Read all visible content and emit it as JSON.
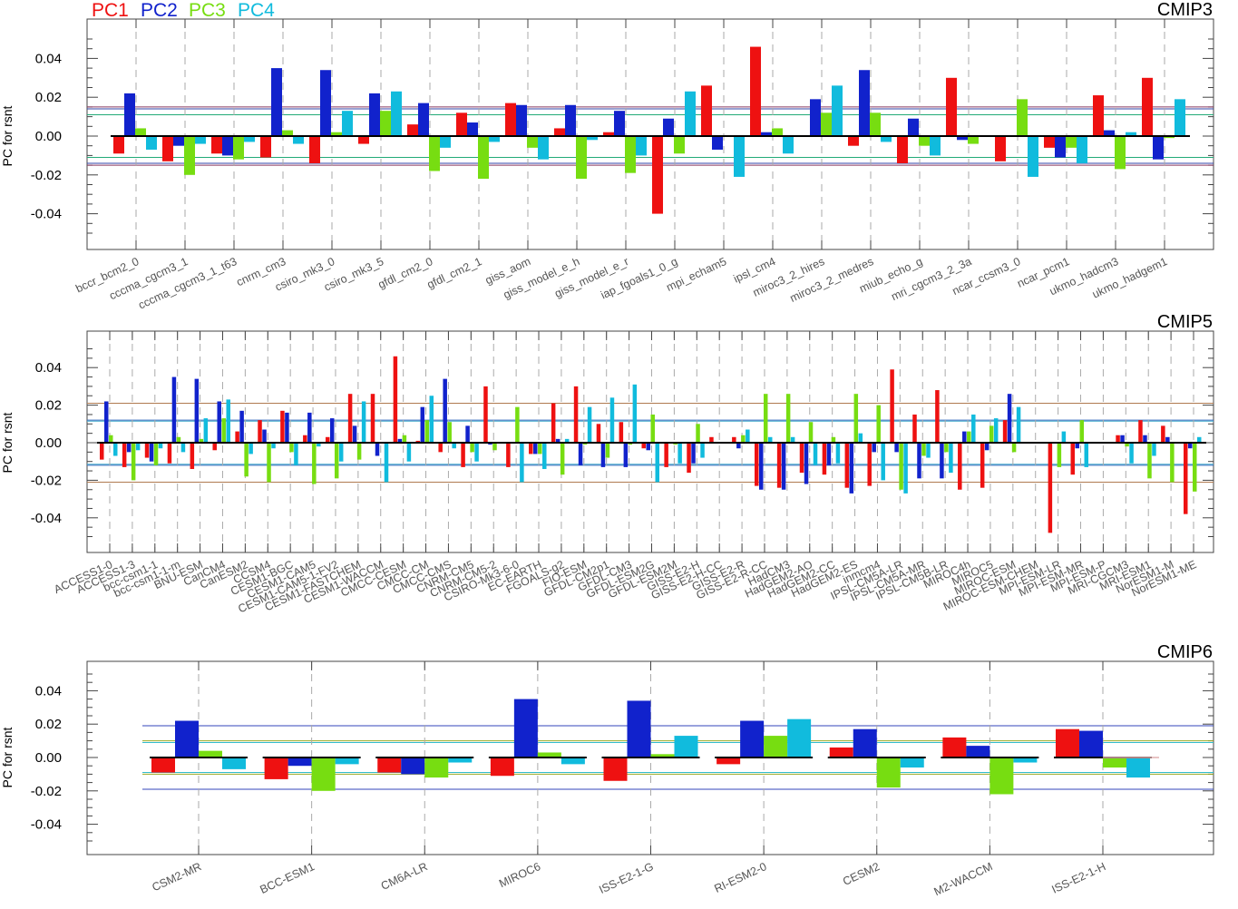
{
  "legend": [
    {
      "label": "PC1",
      "color": "#ee1111"
    },
    {
      "label": "PC2",
      "color": "#1122cc"
    },
    {
      "label": "PC3",
      "color": "#77dd11"
    },
    {
      "label": "PC4",
      "color": "#11bbdd"
    }
  ],
  "chart_data": [
    {
      "type": "bar",
      "title": "CMIP3",
      "ylabel": "PC for rsnt",
      "ylim": [
        -0.057,
        0.06
      ],
      "yticks": [
        "0.04",
        "0.02",
        "0.00",
        "-0.02",
        "-0.04"
      ],
      "categories": [
        "bccr_bcm2_0",
        "cccma_cgcm3_1",
        "cccma_cgcm3_1_t63",
        "cnrm_cm3",
        "csiro_mk3_0",
        "csiro_mk3_5",
        "gfdl_cm2_0",
        "gfdl_cm2_1",
        "giss_aom",
        "giss_model_e_h",
        "giss_model_e_r",
        "iap_fgoals1_0_g",
        "mpi_echam5",
        "ipsl_cm4",
        "miroc3_2_hires",
        "miroc3_2_medres",
        "miub_echo_g",
        "mri_cgcm3_2_3a",
        "ncar_ccsm3_0",
        "ncar_pcm1",
        "ukmo_hadcm3",
        "ukmo_hadgem1"
      ],
      "series": [
        {
          "name": "PC1",
          "values": [
            -0.009,
            -0.013,
            -0.009,
            -0.011,
            -0.014,
            -0.004,
            0.006,
            0.012,
            0.017,
            0.004,
            0.002,
            -0.04,
            0.026,
            0.046,
            0.0,
            -0.005,
            -0.014,
            0.03,
            -0.013,
            -0.006,
            0.021,
            0.03
          ]
        },
        {
          "name": "PC2",
          "values": [
            0.022,
            -0.005,
            -0.01,
            0.035,
            0.034,
            0.022,
            0.017,
            0.007,
            0.016,
            0.016,
            0.013,
            0.009,
            -0.007,
            0.002,
            0.019,
            0.034,
            0.009,
            -0.002,
            0.0,
            -0.011,
            0.003,
            -0.012
          ]
        },
        {
          "name": "PC3",
          "values": [
            0.004,
            -0.02,
            -0.012,
            0.003,
            0.002,
            0.013,
            -0.018,
            -0.022,
            -0.006,
            -0.022,
            -0.019,
            -0.009,
            0.0,
            0.004,
            0.012,
            0.012,
            -0.005,
            -0.004,
            0.019,
            -0.006,
            -0.017,
            -0.001
          ]
        },
        {
          "name": "PC4",
          "values": [
            -0.007,
            -0.004,
            -0.003,
            -0.004,
            0.013,
            0.023,
            -0.006,
            -0.003,
            -0.012,
            -0.002,
            -0.01,
            0.023,
            -0.021,
            -0.009,
            0.026,
            -0.003,
            -0.01,
            0.0,
            -0.021,
            -0.014,
            0.002,
            0.019
          ]
        }
      ],
      "reference_lines": [
        {
          "color": "#8b3a62",
          "values": [
            0.015,
            -0.015
          ]
        },
        {
          "color": "#3344aa",
          "values": [
            0.014,
            -0.014
          ]
        },
        {
          "color": "#22aa77",
          "values": [
            0.011,
            -0.011
          ]
        }
      ]
    },
    {
      "type": "bar",
      "title": "CMIP5",
      "ylabel": "PC for rsnt",
      "ylim": [
        -0.057,
        0.06
      ],
      "yticks": [
        "0.04",
        "0.02",
        "0.00",
        "-0.02",
        "-0.04"
      ],
      "categories": [
        "ACCESS1-0",
        "ACCESS1-3",
        "bcc-csm1-1",
        "bcc-csm1-1-m",
        "BNU-ESM",
        "CanCM4",
        "CanESM2",
        "CCSM4",
        "CESM1-BGC",
        "CESM1-CAM5",
        "CESM1-CAM5-1-FV2",
        "CESM1-FASTCHEM",
        "CESM1-WACCM",
        "CMCC-CESM",
        "CMCC-CM",
        "CMCC-CMS",
        "CNRM-CM5",
        "CNRM-CM5-2",
        "CSIRO-Mk3-6-0",
        "EC-EARTH",
        "FGOALS-g2",
        "FIO-ESM",
        "GFDL-CM2p1",
        "GFDL-CM3",
        "GFDL-ESM2G",
        "GFDL-ESM2M",
        "GISS-E2-H",
        "GISS-E2-H-CC",
        "GISS-E2-R",
        "GISS-E2-R-CC",
        "HadCM3",
        "HadGEM2-AO",
        "HadGEM2-CC",
        "HadGEM2-ES",
        "inmcm4",
        "IPSL-CM5A-LR",
        "IPSL-CM5A-MR",
        "IPSL-CM5B-LR",
        "MIROC4h",
        "MIROC5",
        "MIROC-ESM",
        "MIROC-ESM-CHEM",
        "MPI-ESM-LR",
        "MPI-ESM-MR",
        "MPI-ESM-P",
        "MRI-CGCM3",
        "MRI-ESM1",
        "NorESM1-M",
        "NorESM1-ME"
      ],
      "series": [
        {
          "name": "PC1",
          "values": [
            -0.009,
            -0.013,
            -0.008,
            -0.011,
            -0.014,
            -0.004,
            0.006,
            0.012,
            0.017,
            0.004,
            0.003,
            0.026,
            0.026,
            0.046,
            0.001,
            -0.005,
            -0.013,
            0.03,
            -0.013,
            -0.006,
            0.021,
            0.03,
            0.01,
            0.011,
            -0.003,
            -0.013,
            -0.016,
            0.003,
            0.003,
            -0.023,
            -0.024,
            -0.016,
            -0.017,
            -0.024,
            -0.023,
            0.039,
            0.015,
            0.028,
            -0.025,
            -0.024,
            0.012,
            0.0,
            -0.048,
            -0.017,
            0.0,
            0.004,
            0.012,
            0.009,
            -0.038
          ]
        },
        {
          "name": "PC2",
          "values": [
            0.022,
            -0.005,
            -0.01,
            0.035,
            0.034,
            0.022,
            0.017,
            0.007,
            0.016,
            0.016,
            0.013,
            0.009,
            -0.007,
            0.002,
            0.019,
            0.034,
            0.009,
            -0.001,
            0.0,
            -0.006,
            0.002,
            -0.012,
            -0.013,
            -0.013,
            -0.004,
            0.0,
            -0.011,
            0.0,
            -0.003,
            -0.025,
            -0.025,
            -0.022,
            -0.012,
            -0.027,
            -0.005,
            -0.005,
            -0.019,
            -0.019,
            0.006,
            -0.004,
            0.026,
            0.0,
            0.0,
            -0.003,
            0.0,
            0.004,
            0.004,
            0.003,
            -0.003
          ]
        },
        {
          "name": "PC3",
          "values": [
            0.004,
            -0.02,
            -0.012,
            0.003,
            0.002,
            0.013,
            -0.018,
            -0.021,
            -0.005,
            -0.022,
            -0.019,
            -0.009,
            0.0,
            0.004,
            0.012,
            0.011,
            -0.005,
            -0.004,
            0.019,
            -0.006,
            -0.017,
            -0.001,
            -0.008,
            -0.001,
            0.015,
            -0.001,
            0.01,
            0.0,
            0.004,
            0.026,
            0.026,
            0.011,
            0.003,
            0.026,
            0.02,
            -0.025,
            -0.007,
            -0.005,
            0.006,
            0.009,
            -0.005,
            0.0,
            -0.013,
            0.012,
            0.0,
            -0.002,
            -0.019,
            -0.021,
            -0.026
          ]
        },
        {
          "name": "PC4",
          "values": [
            -0.007,
            -0.004,
            -0.003,
            -0.005,
            0.013,
            0.023,
            -0.006,
            -0.003,
            -0.012,
            -0.002,
            -0.01,
            0.022,
            -0.021,
            -0.01,
            0.025,
            -0.003,
            -0.01,
            0.0,
            -0.021,
            -0.014,
            0.002,
            0.019,
            0.024,
            0.031,
            -0.021,
            -0.011,
            -0.008,
            0.0,
            0.007,
            0.003,
            0.003,
            -0.012,
            -0.011,
            0.005,
            -0.02,
            -0.027,
            -0.008,
            -0.016,
            0.015,
            0.013,
            0.019,
            0.0,
            0.006,
            -0.013,
            0.0,
            -0.011,
            -0.007,
            0.0,
            0.003
          ]
        }
      ],
      "reference_lines": [
        {
          "color": "#b07a50",
          "values": [
            0.021,
            -0.021
          ]
        },
        {
          "color": "#3366bb",
          "values": [
            0.012,
            -0.012
          ]
        },
        {
          "color": "#44aacc",
          "values": [
            0.0115,
            -0.0115
          ]
        }
      ]
    },
    {
      "type": "bar",
      "title": "CMIP6",
      "ylabel": "PC for rsnt",
      "ylim": [
        -0.057,
        0.041
      ],
      "yticks": [
        "0.04",
        "0.02",
        "0.00",
        "-0.02",
        "-0.04"
      ],
      "categories": [
        "CSM2-MR",
        "BCC-ESM1",
        "CM6A-LR",
        "MIROC6",
        "ISS-E2-1-G",
        "RI-ESM2-0",
        "CESM2",
        "M2-WACCM",
        "ISS-E2-1-H"
      ],
      "series": [
        {
          "name": "PC1",
          "values": [
            -0.009,
            -0.013,
            -0.009,
            -0.011,
            -0.014,
            -0.004,
            0.006,
            0.012,
            0.017
          ]
        },
        {
          "name": "PC2",
          "values": [
            0.022,
            -0.005,
            -0.01,
            0.035,
            0.034,
            0.022,
            0.017,
            0.007,
            0.016
          ]
        },
        {
          "name": "PC3",
          "values": [
            0.004,
            -0.02,
            -0.012,
            0.003,
            0.002,
            0.013,
            -0.018,
            -0.022,
            -0.006
          ]
        },
        {
          "name": "PC4",
          "values": [
            -0.007,
            -0.004,
            -0.003,
            -0.004,
            0.013,
            0.023,
            -0.006,
            -0.003,
            -0.012
          ]
        }
      ],
      "reference_lines": [
        {
          "color": "#3344bb",
          "values": [
            0.019,
            -0.019
          ]
        },
        {
          "color": "#99aa22",
          "values": [
            0.01,
            -0.01
          ]
        },
        {
          "color": "#33bbcc",
          "values": [
            0.009,
            -0.009
          ]
        }
      ]
    }
  ]
}
